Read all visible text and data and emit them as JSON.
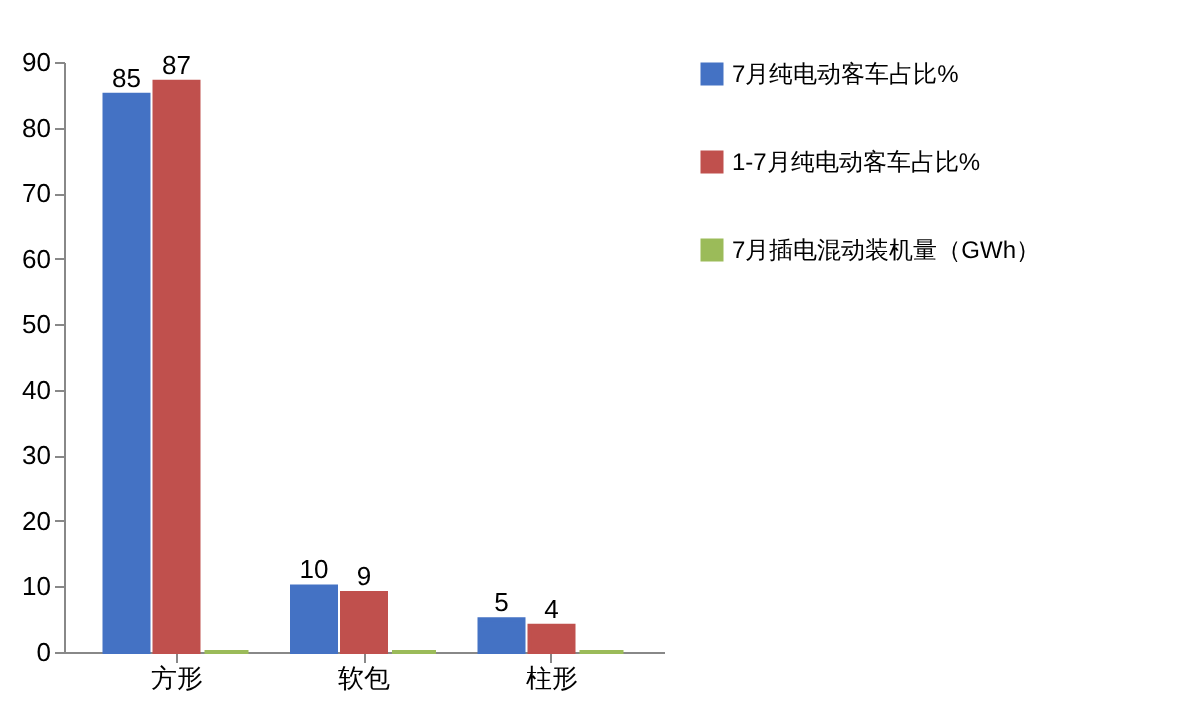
{
  "chart_data": {
    "type": "bar",
    "categories": [
      "方形",
      "软包",
      "柱形"
    ],
    "series": [
      {
        "name": "7月纯电动客车占比%",
        "color": "#4472c4",
        "values": [
          85,
          10,
          5
        ],
        "value_labels": [
          "85",
          "10",
          "5"
        ]
      },
      {
        "name": "1-7月纯电动客车占比%",
        "color": "#c0504d",
        "values": [
          87,
          9,
          4
        ],
        "value_labels": [
          "87",
          "9",
          "4"
        ]
      },
      {
        "name": "7月插电混动装机量（GWh）",
        "color": "#9bbb59",
        "values": [
          0,
          0,
          0
        ],
        "value_labels": [
          null,
          null,
          null
        ]
      }
    ],
    "ylim": [
      0,
      90
    ],
    "yticks": [
      0,
      10,
      20,
      30,
      40,
      50,
      60,
      70,
      80,
      90
    ],
    "legend": "right"
  }
}
